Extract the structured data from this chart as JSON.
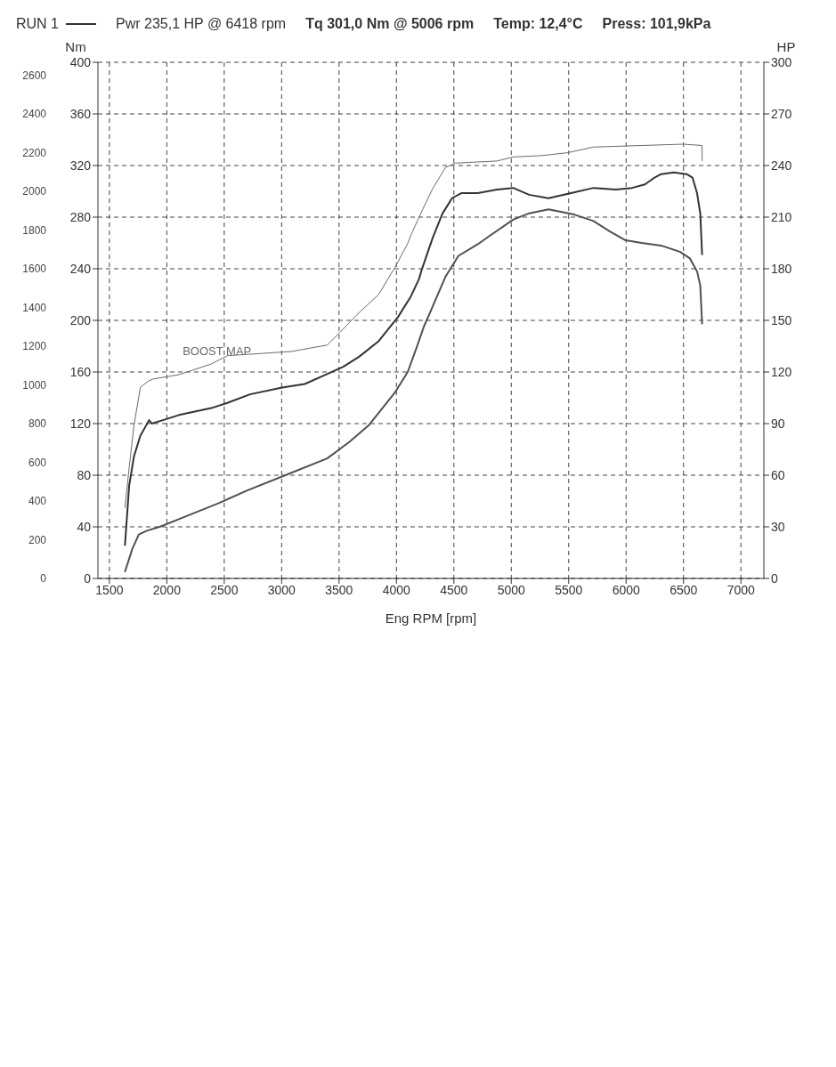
{
  "chart_data": {
    "type": "line",
    "title": "RUN 1",
    "annotations": [
      "Pwr 235,1 HP @ 6418 rpm",
      "Tq 301,0 Nm @ 5006 rpm",
      "Temp: 12,4°C",
      "Press: 101,9kPa"
    ],
    "xlabel": "Eng RPM [rpm]",
    "ylabel": "Nm",
    "y2label": "HP",
    "xlim": [
      1400,
      7200
    ],
    "xticks": [
      1500,
      2000,
      2500,
      3000,
      3500,
      4000,
      4500,
      5000,
      5500,
      6000,
      6500,
      7000
    ],
    "ylim": [
      0,
      400
    ],
    "yticks": [
      0,
      40,
      80,
      120,
      160,
      200,
      240,
      280,
      320,
      360,
      400
    ],
    "y2lim": [
      0,
      300
    ],
    "y2ticks": [
      0,
      30,
      60,
      90,
      120,
      150,
      180,
      210,
      240,
      270,
      300
    ],
    "y3lim": [
      0,
      2667
    ],
    "y3ticks": [
      0,
      200,
      400,
      600,
      800,
      1000,
      1200,
      1400,
      1600,
      1800,
      2000,
      2200,
      2400,
      2600
    ],
    "grid": true,
    "marker": "none",
    "line_style": "solid",
    "series": [
      {
        "axis": "y",
        "color": "#505050",
        "x": [
          1635,
          1700,
          1756,
          1826,
          1938,
          2163,
          2443,
          2696,
          3032,
          3397,
          3593,
          3762,
          3986,
          4098,
          4176,
          4238,
          4302,
          4428,
          4540,
          4708,
          4820,
          5016,
          5156,
          5324,
          5548,
          5716,
          5856,
          5996,
          6136,
          6304,
          6472,
          6556,
          6618,
          6646,
          6662
        ],
        "values": [
          5,
          23,
          34,
          37,
          40,
          48,
          58,
          68,
          80,
          93,
          106,
          119,
          144,
          160,
          179,
          195,
          208,
          234,
          250,
          259,
          266,
          278,
          283,
          286,
          282,
          277,
          269,
          262,
          260,
          258,
          253,
          248,
          238,
          227,
          197
        ]
      },
      {
        "axis": "y2",
        "color": "#333333",
        "x": [
          1635,
          1652,
          1672,
          1714,
          1770,
          1846,
          1868,
          1966,
          2107,
          2387,
          2527,
          2724,
          3004,
          3201,
          3369,
          3537,
          3677,
          3846,
          4014,
          4126,
          4196,
          4218,
          4316,
          4400,
          4484,
          4568,
          4708,
          4876,
          5016,
          5156,
          5324,
          5520,
          5716,
          5912,
          6052,
          6164,
          6248,
          6304,
          6416,
          6528,
          6578,
          6618,
          6646,
          6662
        ],
        "values": [
          19,
          35,
          54,
          71,
          83,
          92,
          90,
          92,
          95,
          99,
          102,
          107,
          111,
          113,
          118,
          123,
          129,
          138,
          152,
          164,
          174,
          179,
          198,
          212,
          221,
          224,
          224,
          226,
          227,
          223,
          221,
          224,
          227,
          226,
          227,
          229,
          233,
          235,
          236,
          235,
          233,
          224,
          212,
          188
        ]
      },
      {
        "name": "BOOST MAP",
        "axis": "y3",
        "color": "#6a6a6a",
        "x": [
          1635,
          1672,
          1714,
          1770,
          1840,
          1882,
          2107,
          2387,
          2527,
          2808,
          3088,
          3397,
          3509,
          3649,
          3846,
          4000,
          4098,
          4126,
          4218,
          4316,
          4428,
          4512,
          4876,
          5016,
          5268,
          5492,
          5716,
          6136,
          6500,
          6662,
          6662
        ],
        "values": [
          365,
          572,
          791,
          988,
          1020,
          1031,
          1053,
          1108,
          1151,
          1162,
          1173,
          1206,
          1272,
          1359,
          1468,
          1621,
          1731,
          1774,
          1894,
          2015,
          2124,
          2146,
          2157,
          2178,
          2185,
          2200,
          2229,
          2237,
          2244,
          2237,
          2157
        ]
      }
    ]
  }
}
